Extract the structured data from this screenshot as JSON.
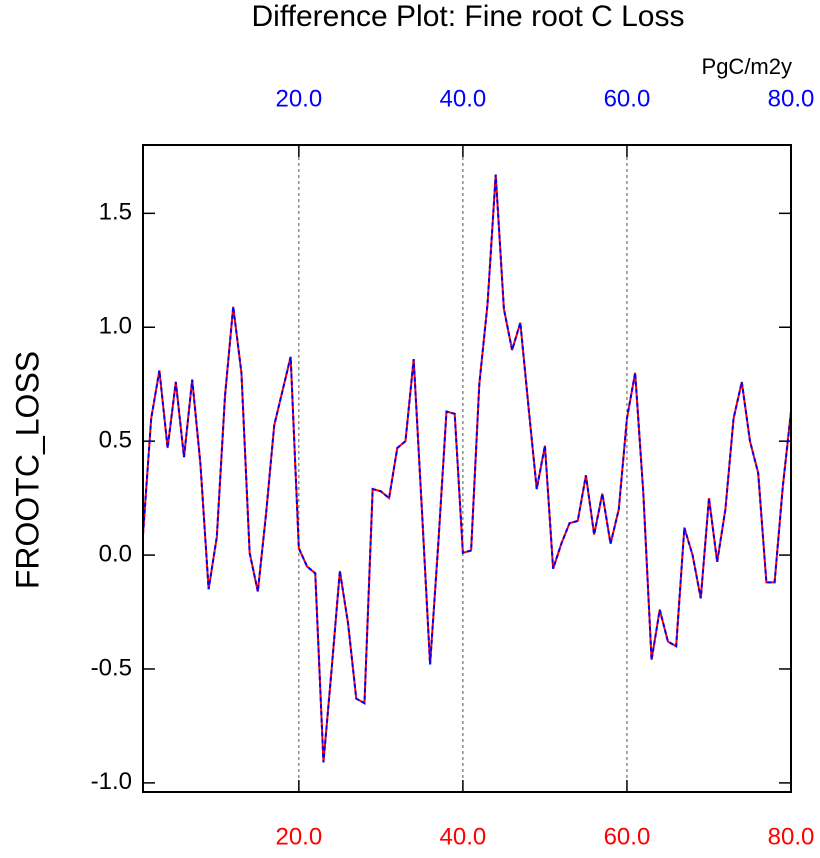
{
  "chart_data": {
    "type": "line",
    "title": "Difference Plot: Fine root C Loss",
    "units": "PgC/m2y",
    "y_label": "FROOTC_LOSS",
    "x": [
      1,
      2,
      3,
      4,
      5,
      6,
      7,
      8,
      9,
      10,
      11,
      12,
      13,
      14,
      15,
      16,
      17,
      18,
      19,
      20,
      21,
      22,
      23,
      24,
      25,
      26,
      27,
      28,
      29,
      30,
      31,
      32,
      33,
      34,
      35,
      36,
      37,
      38,
      39,
      40,
      41,
      42,
      43,
      44,
      45,
      46,
      47,
      48,
      49,
      50,
      51,
      52,
      53,
      54,
      55,
      56,
      57,
      58,
      59,
      60,
      61,
      62,
      63,
      64,
      65,
      66,
      67,
      68,
      69,
      70,
      71,
      72,
      73,
      74,
      75,
      76,
      77,
      78,
      79,
      80
    ],
    "series": [
      {
        "color": "#ff0000",
        "dashed": false,
        "values": [
          0.09,
          0.6,
          0.81,
          0.47,
          0.76,
          0.43,
          0.77,
          0.4,
          -0.15,
          0.08,
          0.7,
          1.09,
          0.8,
          0.01,
          -0.16,
          0.18,
          0.57,
          0.72,
          0.87,
          0.03,
          -0.05,
          -0.08,
          -0.91,
          -0.5,
          -0.07,
          -0.3,
          -0.63,
          -0.65,
          0.29,
          0.28,
          0.25,
          0.47,
          0.5,
          0.86,
          0.2,
          -0.48,
          0.05,
          0.63,
          0.62,
          0.01,
          0.02,
          0.75,
          1.1,
          1.67,
          1.08,
          0.9,
          1.02,
          0.65,
          0.29,
          0.48,
          -0.06,
          0.05,
          0.14,
          0.15,
          0.35,
          0.09,
          0.27,
          0.05,
          0.2,
          0.6,
          0.8,
          0.27,
          -0.46,
          -0.24,
          -0.38,
          -0.4,
          0.12,
          0.0,
          -0.19,
          0.25,
          -0.03,
          0.2,
          0.6,
          0.76,
          0.5,
          0.36,
          -0.12,
          -0.12,
          0.3,
          0.63
        ]
      },
      {
        "color": "#0000ff",
        "dashed": true,
        "values": [
          0.09,
          0.6,
          0.81,
          0.47,
          0.76,
          0.43,
          0.77,
          0.4,
          -0.15,
          0.08,
          0.7,
          1.09,
          0.8,
          0.01,
          -0.16,
          0.18,
          0.57,
          0.72,
          0.87,
          0.03,
          -0.05,
          -0.08,
          -0.91,
          -0.5,
          -0.07,
          -0.3,
          -0.63,
          -0.65,
          0.29,
          0.28,
          0.25,
          0.47,
          0.5,
          0.86,
          0.2,
          -0.48,
          0.05,
          0.63,
          0.62,
          0.01,
          0.02,
          0.75,
          1.1,
          1.67,
          1.08,
          0.9,
          1.02,
          0.65,
          0.29,
          0.48,
          -0.06,
          0.05,
          0.14,
          0.15,
          0.35,
          0.09,
          0.27,
          0.05,
          0.2,
          0.6,
          0.8,
          0.27,
          -0.46,
          -0.24,
          -0.38,
          -0.4,
          0.12,
          0.0,
          -0.19,
          0.25,
          -0.03,
          0.2,
          0.6,
          0.76,
          0.5,
          0.36,
          -0.12,
          -0.12,
          0.3,
          0.63
        ]
      }
    ],
    "xlim": [
      1,
      80
    ],
    "xticks": [
      {
        "value": 20,
        "label": "20.0"
      },
      {
        "value": 40,
        "label": "40.0"
      },
      {
        "value": 60,
        "label": "60.0"
      },
      {
        "value": 80,
        "label": "80.0"
      }
    ],
    "top_tick_color": "#0000ff",
    "bottom_tick_color": "#ff0000",
    "ylim": [
      -1.04,
      1.8
    ],
    "yticks": [
      {
        "value": -1.0,
        "label": "-1.0"
      },
      -0.5,
      {
        "value": 0.0,
        "label": "0.0"
      },
      0.5,
      {
        "value": 1.0,
        "label": "1.0"
      },
      1.5
    ],
    "grid": true
  }
}
